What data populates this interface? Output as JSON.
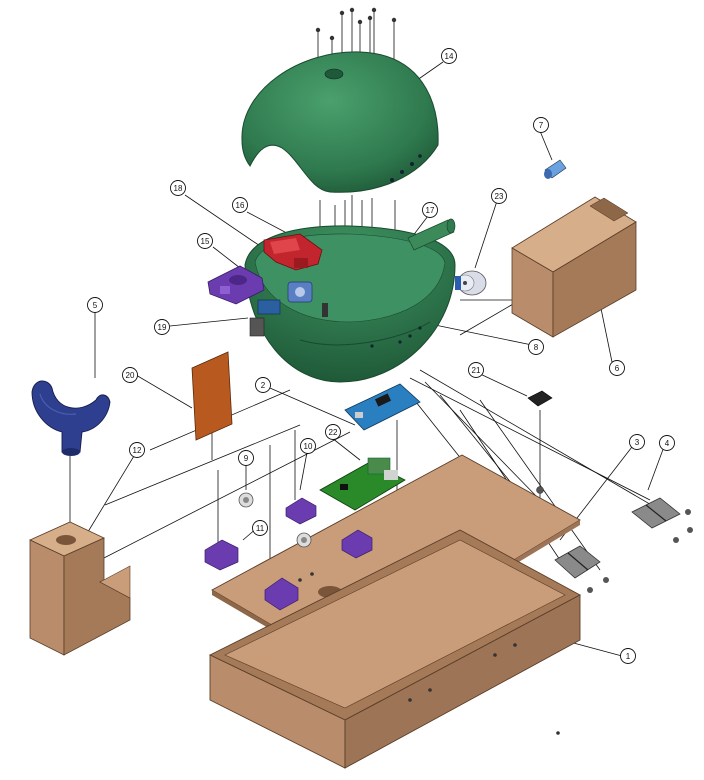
{
  "diagram": {
    "type": "exploded-assembly",
    "colors": {
      "wood": "#b98d6b",
      "wood_dark": "#8e6749",
      "shell": "#2f7a4f",
      "shell_dark": "#1f5a38",
      "purple": "#6b3bb0",
      "navy": "#2e3f8f",
      "red": "#c2252d",
      "pcb_blue": "#2a7fc0",
      "pcb_green": "#2a8a2a",
      "copper": "#b85a20",
      "metal": "#8a8a8a"
    },
    "callouts": [
      {
        "id": "c1",
        "label": "1"
      },
      {
        "id": "c2",
        "label": "2"
      },
      {
        "id": "c3",
        "label": "3"
      },
      {
        "id": "c4",
        "label": "4"
      },
      {
        "id": "c5",
        "label": "5"
      },
      {
        "id": "c6",
        "label": "6"
      },
      {
        "id": "c7",
        "label": "7"
      },
      {
        "id": "c8",
        "label": "8"
      },
      {
        "id": "c9",
        "label": "9"
      },
      {
        "id": "c10",
        "label": "10"
      },
      {
        "id": "c11",
        "label": "11"
      },
      {
        "id": "c12",
        "label": "12"
      },
      {
        "id": "c14",
        "label": "14"
      },
      {
        "id": "c15",
        "label": "15"
      },
      {
        "id": "c16",
        "label": "16"
      },
      {
        "id": "c17",
        "label": "17"
      },
      {
        "id": "c18",
        "label": "18"
      },
      {
        "id": "c19",
        "label": "19"
      },
      {
        "id": "c20",
        "label": "20"
      },
      {
        "id": "c21",
        "label": "21"
      },
      {
        "id": "c22",
        "label": "22"
      },
      {
        "id": "c23",
        "label": "23"
      }
    ]
  }
}
